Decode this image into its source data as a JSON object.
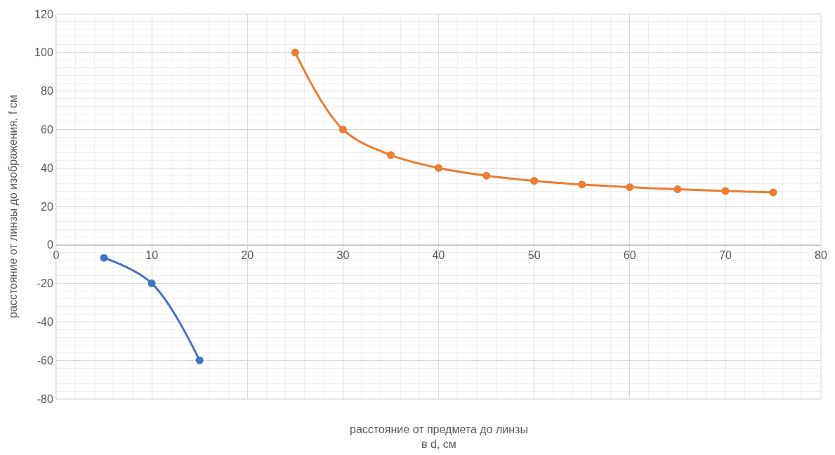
{
  "chart_data": {
    "type": "line",
    "xlabel": "расстояние от предмета до линзы\nв d, см",
    "ylabel": "расстояние от линзы до изображения, f см",
    "series": [
      {
        "color": "#4472c4",
        "x": [
          5,
          10,
          15
        ],
        "values": [
          -6.7,
          -20,
          -60
        ]
      },
      {
        "color": "#ed7d31",
        "x": [
          25,
          30,
          35,
          40,
          45,
          50,
          55,
          60,
          65,
          70,
          75
        ],
        "values": [
          100,
          60,
          46.7,
          40,
          36,
          33.3,
          31.4,
          30,
          28.9,
          28,
          27.3
        ]
      }
    ],
    "xlim": [
      0,
      80
    ],
    "xticks": [
      0,
      10,
      20,
      30,
      40,
      50,
      60,
      70,
      80
    ],
    "ylim": [
      -80,
      120
    ],
    "yticks": [
      -80,
      -60,
      -40,
      -20,
      0,
      20,
      40,
      60,
      80,
      100,
      120
    ],
    "grid": true,
    "marker": "circle",
    "line_style": "solid",
    "legend": false
  }
}
